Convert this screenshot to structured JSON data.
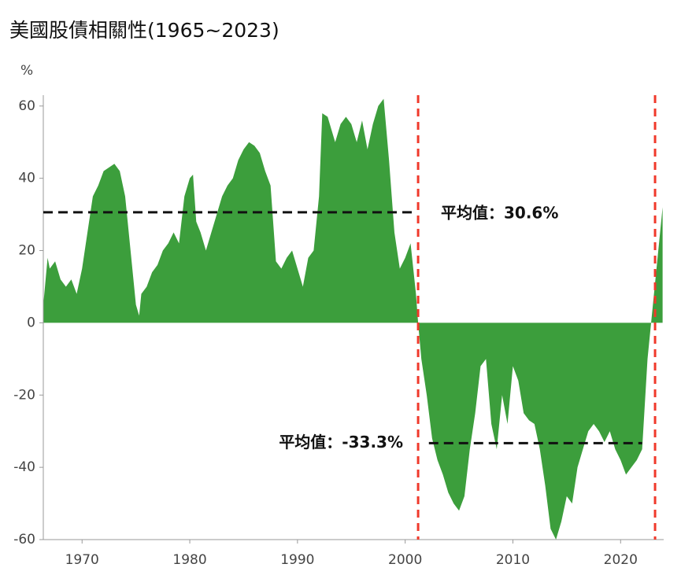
{
  "chart_data": {
    "type": "area",
    "title": "美國股債相關性(1965~2023)",
    "y_unit": "%",
    "color": "#3c9e3c",
    "x": [
      1966.4,
      1966.8,
      1967,
      1967.5,
      1968,
      1968.5,
      1969,
      1969.5,
      1970,
      1970.5,
      1971,
      1971.5,
      1972,
      1972.5,
      1973,
      1973.5,
      1974,
      1974.5,
      1975,
      1975.3,
      1975.5,
      1976,
      1976.5,
      1977,
      1977.5,
      1978,
      1978.5,
      1979,
      1979.5,
      1980,
      1980.3,
      1980.6,
      1981,
      1981.5,
      1982,
      1982.5,
      1983,
      1983.5,
      1984,
      1984.5,
      1985,
      1985.5,
      1986,
      1986.5,
      1987,
      1987.5,
      1988,
      1988.5,
      1989,
      1989.5,
      1990,
      1990.5,
      1991,
      1991.5,
      1992,
      1992.3,
      1992.8,
      1993,
      1993.5,
      1994,
      1994.5,
      1995,
      1995.5,
      1996,
      1996.5,
      1997,
      1997.5,
      1998,
      1998.5,
      1999,
      1999.5,
      2000,
      2000.5,
      2001,
      2001.2,
      2001.5,
      2002,
      2002.5,
      2003,
      2003.5,
      2004,
      2004.5,
      2005,
      2005.5,
      2006,
      2006.5,
      2007,
      2007.5,
      2008,
      2008.5,
      2009,
      2009.5,
      2010,
      2010.5,
      2011,
      2011.5,
      2012,
      2012.5,
      2013,
      2013.5,
      2014,
      2014.5,
      2015,
      2015.5,
      2016,
      2016.5,
      2017,
      2017.5,
      2018,
      2018.5,
      2019,
      2019.5,
      2020,
      2020.5,
      2021,
      2021.5,
      2022,
      2022.5,
      2023,
      2023.5,
      2023.9
    ],
    "values": [
      5,
      18,
      15,
      17,
      12,
      10,
      12,
      8,
      15,
      25,
      35,
      38,
      42,
      43,
      44,
      42,
      35,
      20,
      5,
      2,
      8,
      10,
      14,
      16,
      20,
      22,
      25,
      22,
      35,
      40,
      41,
      28,
      25,
      20,
      25,
      30,
      35,
      38,
      40,
      45,
      48,
      50,
      49,
      47,
      42,
      38,
      17,
      15,
      18,
      20,
      15,
      10,
      18,
      20,
      35,
      58,
      57,
      55,
      50,
      55,
      57,
      55,
      50,
      56,
      48,
      55,
      60,
      62,
      45,
      25,
      15,
      18,
      22,
      8,
      0,
      -10,
      -20,
      -32,
      -38,
      -42,
      -47,
      -50,
      -52,
      -48,
      -35,
      -25,
      -12,
      -10,
      -28,
      -35,
      -20,
      -28,
      -12,
      -16,
      -25,
      -27,
      -28,
      -35,
      -45,
      -57,
      -60,
      -55,
      -48,
      -50,
      -40,
      -35,
      -30,
      -28,
      -30,
      -33,
      -30,
      -35,
      -38,
      -42,
      -40,
      -38,
      -35,
      -10,
      5,
      20,
      32
    ],
    "xlim": [
      1966.4,
      2024
    ],
    "ylim": [
      -60,
      63
    ],
    "xticks": [
      1970,
      1980,
      1990,
      2000,
      2010,
      2020
    ],
    "yticks": [
      -60,
      -40,
      -20,
      0,
      20,
      40,
      60
    ],
    "mean_lines": [
      {
        "value": 30.6,
        "label": "平均值：30.6%",
        "x": [
          1966.4,
          2001
        ]
      },
      {
        "value": -33.3,
        "label": "平均值：-33.3%",
        "x": [
          2002.2,
          2022
        ]
      }
    ],
    "markers": [
      2001.2,
      2023.2
    ]
  }
}
